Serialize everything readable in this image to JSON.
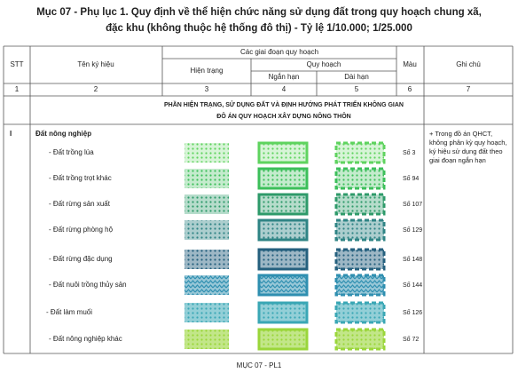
{
  "title_lines": [
    "Mục 07 - Phụ lục 1. Quy định về thể hiện chức năng sử dụng đất trong quy hoạch chung xã,",
    "đặc khu (không thuộc hệ thống đô thị) - Tỷ lệ 1/10.000; 1/25.000"
  ],
  "header": {
    "stt": "STT",
    "name": "Tên ký hiệu",
    "stages": "Các giai đoạn quy hoạch",
    "current": "Hiện trạng",
    "plan": "Quy hoạch",
    "short": "Ngắn hạn",
    "long": "Dài hạn",
    "color": "Màu",
    "note": "Ghi chú",
    "numbers": [
      "1",
      "2",
      "3",
      "4",
      "5",
      "6",
      "7"
    ]
  },
  "section": [
    "PHẦN HIỆN TRẠNG, SỬ DỤNG ĐẤT VÀ ĐỊNH HƯỚNG PHÁT TRIỂN KHÔNG GIAN",
    "ĐÔ ÁN QUY HOẠCH XÂY DỰNG NÔNG THÔN"
  ],
  "group": {
    "number": "I",
    "name": "Đất nông nghiệp",
    "note": "+ Trong đồ án QHCT, không phân kỳ quy hoạch, ký hiệu sử dụng đất theo giai đoạn ngắn hạn"
  },
  "rows": [
    {
      "name": "- Đất trồng lúa",
      "color_label": "Số 3",
      "color": "#5fd35f"
    },
    {
      "name": "- Đất trồng trọt khác",
      "color_label": "Số 94",
      "color": "#3cbf5a"
    },
    {
      "name": "- Đất  rừng sản xuất",
      "color_label": "Số 107",
      "color": "#2e9a6a"
    },
    {
      "name": "- Đất  rừng phòng hộ",
      "color_label": "Số 129",
      "color": "#2f8485"
    },
    {
      "name": "- Đất  rừng đặc dụng",
      "color_label": "Số 148",
      "color": "#25607e"
    },
    {
      "name": "- Đất  nuôi trồng thủy sản",
      "color_label": "Số 144",
      "color": "#2f8fb0"
    },
    {
      "name": "- Đất làm muối",
      "color_label": "Số 126",
      "color": "#3aa7b5"
    },
    {
      "name": "- Đất nông nghiệp khác",
      "color_label": "Số 72",
      "color": "#9ad63a"
    }
  ],
  "footer": "MỤC 07 - PL1"
}
